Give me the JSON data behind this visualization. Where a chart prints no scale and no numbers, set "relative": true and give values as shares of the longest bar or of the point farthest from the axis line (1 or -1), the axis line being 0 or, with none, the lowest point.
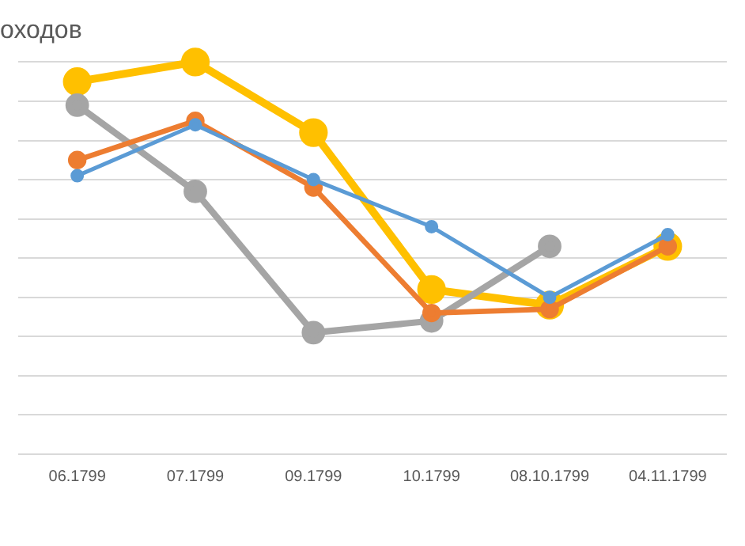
{
  "chart_data": {
    "type": "line",
    "title": "оходов",
    "relative": true,
    "grid": "y",
    "marker": "circle",
    "legend": false,
    "categories": [
      "06.1799",
      "07.1799",
      "09.1799",
      "10.1799",
      "08.10.1799",
      "04.11.1799"
    ],
    "series": [
      {
        "color": "#5b9bd5",
        "values": [
          0.71,
          0.84,
          0.7,
          0.58,
          0.4,
          0.56
        ]
      },
      {
        "color": "#ed7d31",
        "values": [
          0.75,
          0.85,
          0.68,
          0.36,
          0.37,
          0.53
        ]
      },
      {
        "color": "#a5a5a5",
        "values": [
          0.89,
          0.67,
          0.31,
          0.34,
          0.53,
          null
        ]
      },
      {
        "color": "#ffc000",
        "values": [
          0.95,
          1,
          0.82,
          0.42,
          0.38,
          0.53
        ]
      }
    ]
  }
}
